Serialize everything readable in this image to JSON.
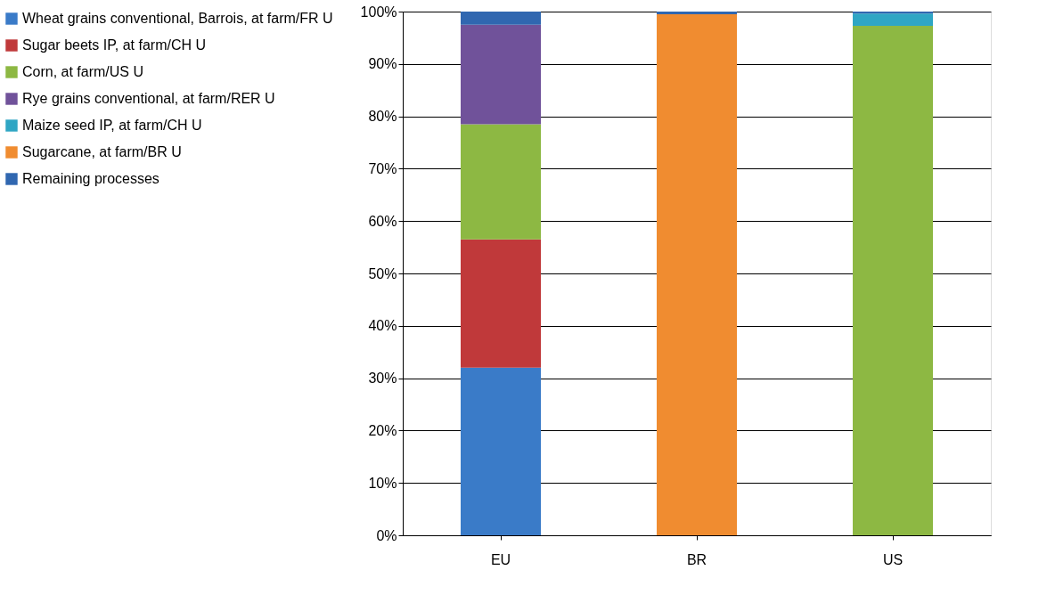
{
  "chart_data": {
    "type": "bar",
    "stacked": true,
    "categories": [
      "EU",
      "BR",
      "US"
    ],
    "series": [
      {
        "name": "Wheat grains conventional, Barrois, at farm/FR U",
        "color": "#3a7bc8",
        "values": [
          32,
          null,
          null
        ]
      },
      {
        "name": "Sugar beets IP, at farm/CH U",
        "color": "#c0393a",
        "values": [
          24.5,
          null,
          null
        ]
      },
      {
        "name": "Corn, at farm/US U",
        "color": "#8db843",
        "values": [
          22,
          null,
          97.3
        ]
      },
      {
        "name": "Rye grains conventional, at farm/RER U",
        "color": "#70529a",
        "values": [
          19,
          null,
          null
        ]
      },
      {
        "name": "Maize seed IP, at farm/CH U",
        "color": "#2fa6c4",
        "values": [
          null,
          null,
          2.3
        ]
      },
      {
        "name": "Sugarcane, at farm/BR U",
        "color": "#f08c30",
        "values": [
          null,
          99.5,
          null
        ]
      },
      {
        "name": "Remaining processes",
        "color": "#3067b0",
        "values": [
          2.5,
          0.5,
          0.4
        ]
      }
    ],
    "ylim": [
      0,
      100
    ],
    "yticks": [
      {
        "value": 0,
        "label": "0%"
      },
      {
        "value": 10,
        "label": "10%"
      },
      {
        "value": 20,
        "label": "20%"
      },
      {
        "value": 30,
        "label": "30%"
      },
      {
        "value": 40,
        "label": "40%"
      },
      {
        "value": 50,
        "label": "50%"
      },
      {
        "value": 60,
        "label": "60%"
      },
      {
        "value": 70,
        "label": "70%"
      },
      {
        "value": 80,
        "label": "80%"
      },
      {
        "value": 90,
        "label": "90%"
      },
      {
        "value": 100,
        "label": "100%"
      }
    ],
    "grid": "y",
    "legend": "left"
  }
}
